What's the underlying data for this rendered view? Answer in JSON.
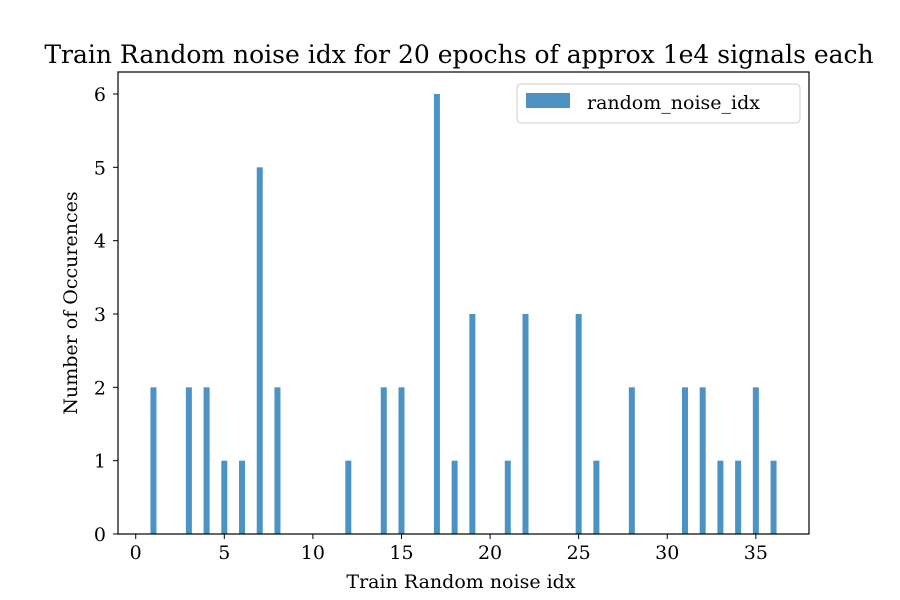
{
  "chart_data": {
    "type": "bar",
    "title": "Train Random noise idx for 20 epochs of approx 1e4 signals each",
    "xlabel": "Train Random noise idx",
    "ylabel": "Number of Occurences",
    "xlim": [
      -1,
      38
    ],
    "ylim": [
      0,
      6.3
    ],
    "xticks": [
      0,
      5,
      10,
      15,
      20,
      25,
      30,
      35
    ],
    "yticks": [
      0,
      1,
      2,
      3,
      4,
      5,
      6
    ],
    "grid": false,
    "legend_position": "top-right",
    "series": [
      {
        "name": "random_noise_idx",
        "color": "#4c93c3",
        "x": [
          1,
          3,
          4,
          5,
          6,
          7,
          8,
          12,
          14,
          15,
          17,
          18,
          19,
          21,
          22,
          25,
          26,
          28,
          31,
          32,
          33,
          34,
          35,
          36
        ],
        "values": [
          2,
          2,
          2,
          1,
          1,
          5,
          2,
          1,
          2,
          2,
          6,
          1,
          3,
          1,
          3,
          3,
          1,
          2,
          2,
          2,
          1,
          1,
          2,
          1
        ]
      }
    ]
  }
}
